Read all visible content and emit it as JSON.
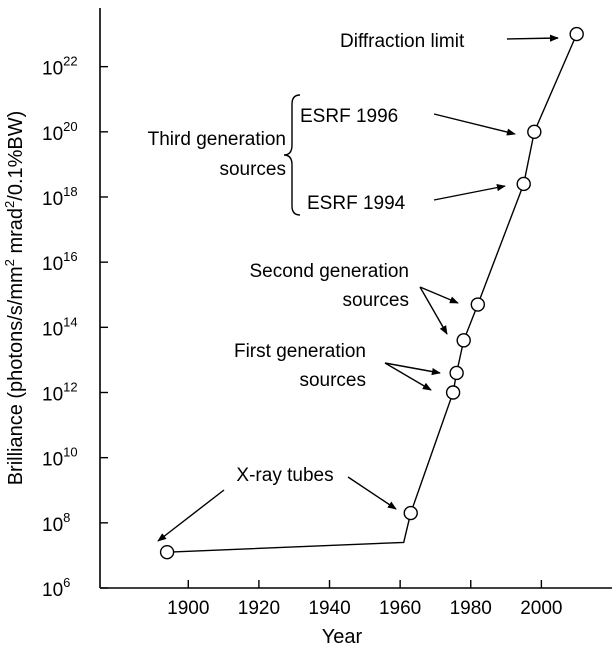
{
  "chart_data": {
    "type": "scatter",
    "title": "",
    "xlabel": "Year",
    "ylabel": {
      "parts": [
        "Brilliance (photons/s/mm",
        "2",
        " mrad",
        "2",
        "/0.1%BW)"
      ]
    },
    "xlim": [
      1875,
      2020
    ],
    "ylim_log10": [
      6,
      23.8
    ],
    "log_scale_y": true,
    "grid": false,
    "x_ticks": [
      {
        "value": 1900,
        "label": "1900"
      },
      {
        "value": 1920,
        "label": "1920"
      },
      {
        "value": 1940,
        "label": "1940"
      },
      {
        "value": 1960,
        "label": "1960"
      },
      {
        "value": 1980,
        "label": "1980"
      },
      {
        "value": 2000,
        "label": "2000"
      }
    ],
    "y_ticks": [
      {
        "value_log10": 6,
        "base": "10",
        "exp": "6"
      },
      {
        "value_log10": 8,
        "base": "10",
        "exp": "8"
      },
      {
        "value_log10": 10,
        "base": "10",
        "exp": "10"
      },
      {
        "value_log10": 12,
        "base": "10",
        "exp": "12"
      },
      {
        "value_log10": 14,
        "base": "10",
        "exp": "14"
      },
      {
        "value_log10": 16,
        "base": "10",
        "exp": "16"
      },
      {
        "value_log10": 18,
        "base": "10",
        "exp": "18"
      },
      {
        "value_log10": 20,
        "base": "10",
        "exp": "20"
      },
      {
        "value_log10": 22,
        "base": "10",
        "exp": "22"
      }
    ],
    "line": [
      {
        "x": 1894,
        "y_log10": 7.1
      },
      {
        "x": 1961,
        "y_log10": 7.4
      },
      {
        "x": 1963,
        "y_log10": 8.3
      },
      {
        "x": 1975,
        "y_log10": 12.0
      },
      {
        "x": 1976,
        "y_log10": 12.6
      },
      {
        "x": 1978,
        "y_log10": 13.6
      },
      {
        "x": 1982,
        "y_log10": 14.7
      },
      {
        "x": 1995,
        "y_log10": 18.4
      },
      {
        "x": 1998,
        "y_log10": 20.0
      },
      {
        "x": 2010,
        "y_log10": 23.0
      }
    ],
    "points": [
      {
        "x": 1894,
        "y_log10": 7.1
      },
      {
        "x": 1963,
        "y_log10": 8.3
      },
      {
        "x": 1975,
        "y_log10": 12.0
      },
      {
        "x": 1976,
        "y_log10": 12.6
      },
      {
        "x": 1978,
        "y_log10": 13.6
      },
      {
        "x": 1982,
        "y_log10": 14.7
      },
      {
        "x": 1995,
        "y_log10": 18.4
      },
      {
        "x": 1998,
        "y_log10": 20.0
      },
      {
        "x": 2010,
        "y_log10": 23.0
      }
    ],
    "annotations": {
      "diffraction_limit": "Diffraction limit",
      "esrf_1996": "ESRF 1996",
      "esrf_1994": "ESRF 1994",
      "third_generation_1": "Third generation",
      "third_generation_2": "sources",
      "second_generation_1": "Second generation",
      "second_generation_2": "sources",
      "first_generation_1": "First generation",
      "first_generation_2": "sources",
      "xray_tubes": "X-ray tubes"
    }
  }
}
